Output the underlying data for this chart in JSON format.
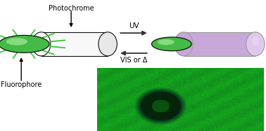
{
  "bg_color": "#ffffff",
  "photochrome_label": "Photochrome",
  "fluorophore_label": "Fluorophore",
  "uv_label": "UV",
  "vis_label": "VIS or Δ",
  "green_ball_color": "#44bb44",
  "green_ball_highlight": "#aaeea0",
  "green_ball_outline": "#111111",
  "green_ray_color": "#33cc33",
  "cylinder_white_face": "#f8f8f8",
  "cylinder_white_outline": "#111111",
  "cylinder_white_ellipse_face": "#e8e8e8",
  "cylinder_purple_face": "#c8a8d8",
  "cylinder_purple_outline": "#999999",
  "cylinder_purple_ellipse_face": "#e0c8ec",
  "connector_color": "#111111",
  "arrow_color": "#333333",
  "label_fontsize": 7.0,
  "uv_fontsize": 7.5
}
